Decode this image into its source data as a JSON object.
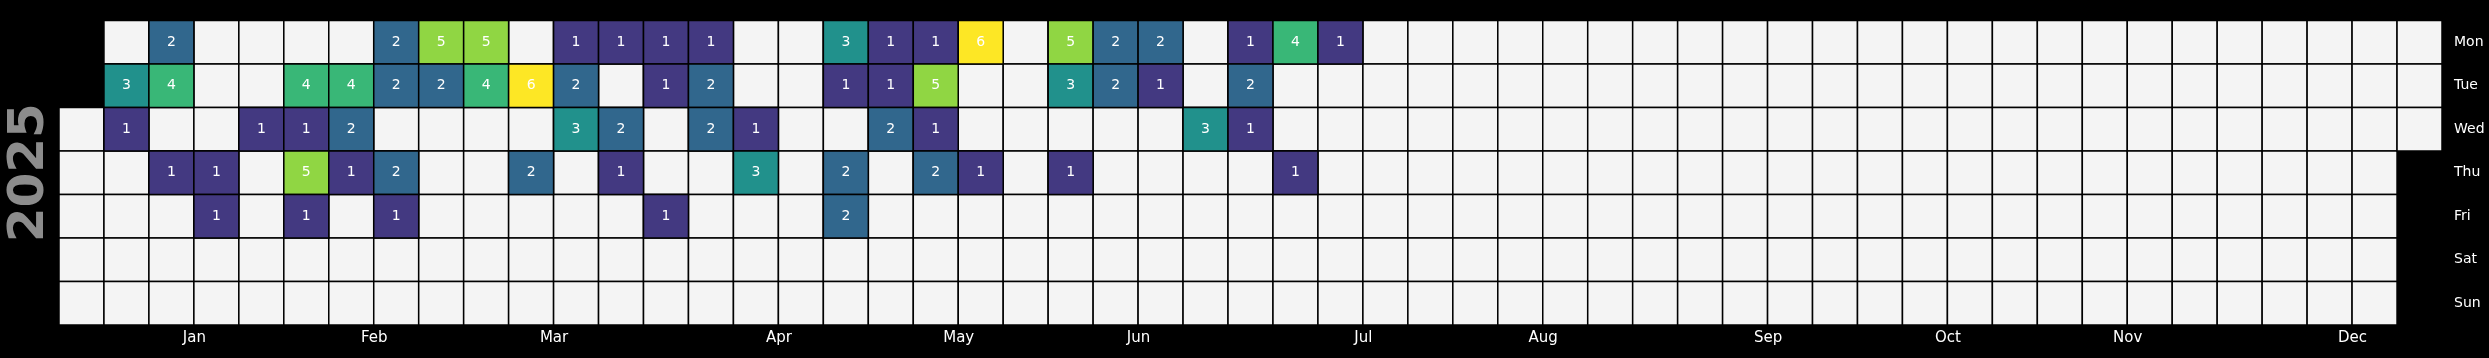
{
  "chart_data": {
    "type": "heatmap",
    "ylabel": "2025",
    "data_labels": true,
    "categories": [
      null,
      null,
      null,
      "Jan",
      null,
      null,
      null,
      "Feb",
      null,
      null,
      null,
      "Mar",
      null,
      null,
      null,
      null,
      "Apr",
      null,
      null,
      null,
      "May",
      null,
      null,
      null,
      "Jun",
      null,
      null,
      null,
      null,
      "Jul",
      null,
      null,
      null,
      "Aug",
      null,
      null,
      null,
      null,
      "Sep",
      null,
      null,
      null,
      "Oct",
      null,
      null,
      null,
      "Nov",
      null,
      null,
      null,
      null,
      "Dec",
      null
    ],
    "y_categories": [
      "Mon",
      "Tue",
      "Wed",
      "Thu",
      "Fri",
      "Sat",
      "Sun"
    ],
    "cells": [
      [
        null,
        null,
        2,
        null,
        null,
        null,
        null,
        2,
        5,
        5,
        null,
        1,
        1,
        1,
        1,
        null,
        null,
        3,
        1,
        1,
        6,
        null,
        5,
        2,
        2,
        null,
        1,
        4,
        1,
        null,
        null,
        null,
        null,
        null,
        null,
        null,
        null,
        null,
        null,
        null,
        null,
        null,
        null,
        null,
        null,
        null,
        null,
        null,
        null,
        null,
        null,
        null,
        null
      ],
      [
        null,
        3,
        4,
        null,
        null,
        4,
        4,
        2,
        2,
        4,
        6,
        2,
        null,
        1,
        2,
        null,
        null,
        1,
        1,
        5,
        null,
        null,
        3,
        2,
        1,
        null,
        2,
        null,
        null,
        null,
        null,
        null,
        null,
        null,
        null,
        null,
        null,
        null,
        null,
        null,
        null,
        null,
        null,
        null,
        null,
        null,
        null,
        null,
        null,
        null,
        null,
        null,
        null
      ],
      [
        null,
        1,
        null,
        null,
        1,
        1,
        2,
        null,
        null,
        null,
        null,
        3,
        2,
        null,
        2,
        1,
        null,
        null,
        2,
        1,
        null,
        null,
        null,
        null,
        null,
        3,
        1,
        null,
        null,
        null,
        null,
        null,
        null,
        null,
        null,
        null,
        null,
        null,
        null,
        null,
        null,
        null,
        null,
        null,
        null,
        null,
        null,
        null,
        null,
        null,
        null,
        null,
        null
      ],
      [
        null,
        null,
        1,
        1,
        null,
        5,
        1,
        2,
        null,
        null,
        2,
        null,
        1,
        null,
        null,
        3,
        null,
        2,
        null,
        2,
        1,
        null,
        1,
        null,
        null,
        null,
        null,
        1,
        null,
        null,
        null,
        null,
        null,
        null,
        null,
        null,
        null,
        null,
        null,
        null,
        null,
        null,
        null,
        null,
        null,
        null,
        null,
        null,
        null,
        null,
        null,
        null,
        null
      ],
      [
        null,
        null,
        null,
        1,
        null,
        1,
        null,
        1,
        null,
        null,
        null,
        null,
        null,
        1,
        null,
        null,
        null,
        2,
        null,
        null,
        null,
        null,
        null,
        null,
        null,
        null,
        null,
        null,
        null,
        null,
        null,
        null,
        null,
        null,
        null,
        null,
        null,
        null,
        null,
        null,
        null,
        null,
        null,
        null,
        null,
        null,
        null,
        null,
        null,
        null,
        null,
        null,
        null
      ],
      [
        null,
        null,
        null,
        null,
        null,
        null,
        null,
        null,
        null,
        null,
        null,
        null,
        null,
        null,
        null,
        null,
        null,
        null,
        null,
        null,
        null,
        null,
        null,
        null,
        null,
        null,
        null,
        null,
        null,
        null,
        null,
        null,
        null,
        null,
        null,
        null,
        null,
        null,
        null,
        null,
        null,
        null,
        null,
        null,
        null,
        null,
        null,
        null,
        null,
        null,
        null,
        null,
        null
      ],
      [
        null,
        null,
        null,
        null,
        null,
        null,
        null,
        null,
        null,
        null,
        null,
        null,
        null,
        null,
        null,
        null,
        null,
        null,
        null,
        null,
        null,
        null,
        null,
        null,
        null,
        null,
        null,
        null,
        null,
        null,
        null,
        null,
        null,
        null,
        null,
        null,
        null,
        null,
        null,
        null,
        null,
        null,
        null,
        null,
        null,
        null,
        null,
        null,
        null,
        null,
        null,
        null,
        null
      ]
    ]
  }
}
